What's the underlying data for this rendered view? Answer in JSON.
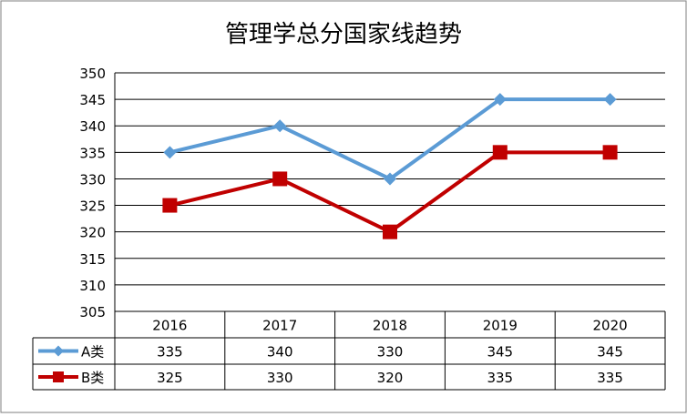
{
  "chart_data": {
    "type": "line",
    "title": "管理学总分国家线趋势",
    "categories": [
      "2016",
      "2017",
      "2018",
      "2019",
      "2020"
    ],
    "yticks": [
      "350",
      "345",
      "340",
      "335",
      "330",
      "325",
      "320",
      "315",
      "310",
      "305"
    ],
    "ylim": [
      305,
      350
    ],
    "grid": true,
    "legend": "data-table",
    "series": [
      {
        "name": "A类",
        "values": [
          335,
          340,
          330,
          345,
          345
        ],
        "color": "#5b9bd5",
        "marker": "diamond"
      },
      {
        "name": "B类",
        "values": [
          325,
          330,
          320,
          335,
          335
        ],
        "color": "#c00000",
        "marker": "square"
      }
    ],
    "table_values": [
      [
        "335",
        "340",
        "330",
        "345",
        "345"
      ],
      [
        "325",
        "330",
        "320",
        "335",
        "335"
      ]
    ]
  }
}
